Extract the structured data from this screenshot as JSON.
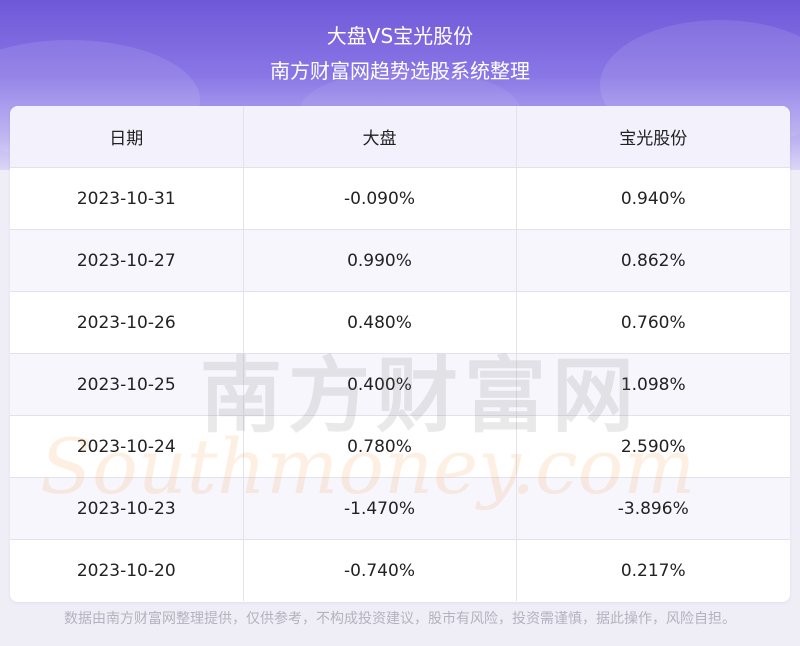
{
  "header": {
    "title": "大盘VS宝光股份",
    "subtitle": "南方财富网趋势选股系统整理"
  },
  "table": {
    "columns": [
      "日期",
      "大盘",
      "宝光股份"
    ],
    "rows": [
      {
        "date": "2023-10-31",
        "market": "-0.090%",
        "stock": "0.940%"
      },
      {
        "date": "2023-10-27",
        "market": "0.990%",
        "stock": "0.862%"
      },
      {
        "date": "2023-10-26",
        "market": "0.480%",
        "stock": "0.760%"
      },
      {
        "date": "2023-10-25",
        "market": "0.400%",
        "stock": "1.098%"
      },
      {
        "date": "2023-10-24",
        "market": "0.780%",
        "stock": "2.590%"
      },
      {
        "date": "2023-10-23",
        "market": "-1.470%",
        "stock": "-3.896%"
      },
      {
        "date": "2023-10-20",
        "market": "-0.740%",
        "stock": "0.217%"
      }
    ]
  },
  "watermark": {
    "cn": "南方财富网",
    "en": "Southmoney.com"
  },
  "footer": {
    "disclaimer": "数据由南方财富网整理提供，仅供参考，不构成投资建议，股市有风险，投资需谨慎，据此操作，风险自担。"
  },
  "colors": {
    "header_top": "#6f58d8",
    "header_bottom": "#dcd7f6",
    "table_header_bg": "#f3f1fc",
    "row_alt_bg": "#f6f5fb",
    "footer_text": "#b4b2c0"
  }
}
